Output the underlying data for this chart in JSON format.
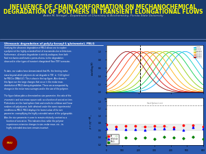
{
  "title_line1": "INFLUENCE OF CHAIN CONFORMATION ON MECHANOCHEMICAL",
  "title_line2": "DEGRADATION OF POLYMERS IN TRANSIENT ELONGATIONAL FLOWS",
  "subtitle": "André M. Striegel – Department of Chemistry & Biochemistry, Florida State University",
  "background_color": "#1a3a6b",
  "content_bg": "#2a5ab0",
  "title_color": "#ffff00",
  "subtitle_color": "#cccccc",
  "left_section_title": "Ultrasonic degradation of poly(γ-benzyl-L-glutamate), PBLG",
  "colors_gpc": [
    "#00aaff",
    "#00ccbb",
    "#00cc44",
    "#88cc00",
    "#cccc00",
    "#ffaa00",
    "#ff7700",
    "#ff3300",
    "#cc0000",
    "#880000"
  ],
  "labels_gpc": [
    "0 min",
    "30 min",
    "60 min",
    "120 min",
    "180 min",
    "240 min",
    "300 min",
    "360 min",
    "420 min",
    "480 min"
  ],
  "left_para1": "Studying the ultrasonic degradation of PBLG allows one to explore\na polymer at the highly-extended limit of macromolecular architecture.\nFurthermore, ultrasonic degradation is strictly analogous, from both\nfluid mechanics and kinetics points-of-view, to the degradation\nobserved in other types of transient elongational flow (TEF) scenarios.",
  "left_para2": "To date, our studies have demonstrated that Mc, the limiting molar\nmass beyond which polymers do not degrade in TEF, is ~114 kg/mol\nfor PBLG in DMAc/LiCl. This is show in the top figure. Also shown in\nthis figure are the large changes that occur in the molar mass\ndistribution of PBLG during degradation. These are accompanied by\nchanges in the molar mass averages and in the size of the polymer.",
  "left_para3": "The figure below plots a dimensionless size parameter, the ratio of the\nviscometric and root-mean-square radii, as a function of sonication time.\nPlotted also are the hard sphere limit and results for cellulose and linear\nrandom coil polystyrene, both obtained under the same experimental\nconditions as PBLG. PBLG displays the lowest value of the size\nparameter, exemplifying the highly extended nature of the polypeptide.\nAlso, the size parameter is seen to remain relatively constant as a\n    function of sonication. This indicates that, while the polymer\n    experiences extensive changes in size, molar mass, etc., its\n    highly extended structure remains invariant."
}
